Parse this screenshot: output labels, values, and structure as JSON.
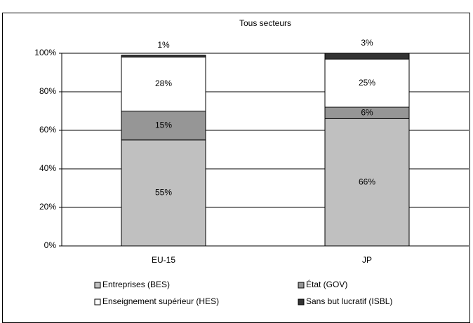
{
  "chart_data": {
    "type": "stacked_bar",
    "title": "Tous secteurs",
    "categories": [
      "EU-15",
      "JP"
    ],
    "series": [
      {
        "name": "Entreprises (BES)",
        "color": "#c0c0c0",
        "values": [
          55,
          66
        ],
        "value_labels": [
          "55%",
          "66%"
        ]
      },
      {
        "name": "État (GOV)",
        "color": "#969696",
        "values": [
          15,
          6
        ],
        "value_labels": [
          "15%",
          "6%"
        ]
      },
      {
        "name": "Enseignement supérieur (HES)",
        "color": "#ffffff",
        "values": [
          28,
          25
        ],
        "value_labels": [
          "28%",
          "25%"
        ]
      },
      {
        "name": "Sans but lucratif (ISBL)",
        "color": "#333333",
        "values": [
          1,
          3
        ],
        "value_labels": [
          "1%",
          "3%"
        ]
      }
    ],
    "ylim": [
      0,
      100
    ],
    "yticks": [
      {
        "value": 0,
        "label": "0%"
      },
      {
        "value": 20,
        "label": "20%"
      },
      {
        "value": 40,
        "label": "40%"
      },
      {
        "value": 60,
        "label": "60%"
      },
      {
        "value": 80,
        "label": "80%"
      },
      {
        "value": 100,
        "label": "100%"
      }
    ],
    "grid": true
  }
}
